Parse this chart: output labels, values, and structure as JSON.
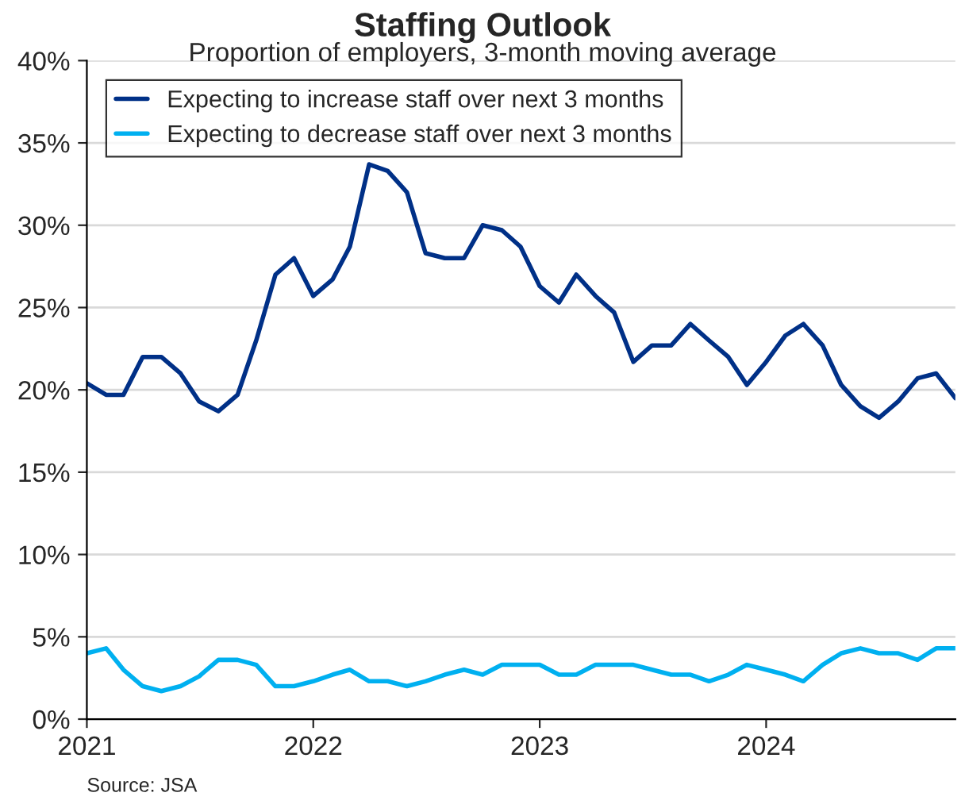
{
  "chart_data": {
    "type": "line",
    "title": "Staffing Outlook",
    "subtitle": "Proportion of employers, 3-month moving average",
    "x": [
      "2021-01",
      "2021-02",
      "2021-03",
      "2021-04",
      "2021-05",
      "2021-06",
      "2021-07",
      "2021-08",
      "2021-09",
      "2021-10",
      "2021-11",
      "2021-12",
      "2022-01",
      "2022-02",
      "2022-03",
      "2022-04",
      "2022-05",
      "2022-06",
      "2022-07",
      "2022-08",
      "2022-09",
      "2022-10",
      "2022-11",
      "2022-12",
      "2023-01",
      "2023-02",
      "2023-03",
      "2023-04",
      "2023-05",
      "2023-06",
      "2023-07",
      "2023-08",
      "2023-09",
      "2023-10",
      "2023-11",
      "2023-12",
      "2024-01",
      "2024-02",
      "2024-03",
      "2024-04",
      "2024-05",
      "2024-06",
      "2024-07",
      "2024-08",
      "2024-09",
      "2024-10",
      "2024-11"
    ],
    "series": [
      {
        "name": "Expecting to increase staff over next 3 months",
        "color": "#003087",
        "values": [
          20.4,
          19.7,
          19.7,
          22.0,
          22.0,
          21.0,
          19.3,
          18.7,
          19.7,
          23.0,
          27.0,
          28.0,
          25.7,
          26.7,
          28.7,
          33.7,
          33.3,
          32.0,
          28.3,
          28.0,
          28.0,
          30.0,
          29.7,
          28.7,
          26.3,
          25.3,
          27.0,
          25.7,
          24.7,
          21.7,
          22.7,
          22.7,
          24.0,
          23.0,
          22.0,
          20.3,
          21.7,
          23.3,
          24.0,
          22.7,
          20.3,
          19.0,
          18.3,
          19.3,
          20.7,
          21.0,
          19.5
        ]
      },
      {
        "name": "Expecting to decrease staff over next 3 months",
        "color": "#00b0f0",
        "values": [
          4.0,
          4.3,
          3.0,
          2.0,
          1.7,
          2.0,
          2.6,
          3.6,
          3.6,
          3.3,
          2.0,
          2.0,
          2.3,
          2.7,
          3.0,
          2.3,
          2.3,
          2.0,
          2.3,
          2.7,
          3.0,
          2.7,
          3.3,
          3.3,
          3.3,
          2.7,
          2.7,
          3.3,
          3.3,
          3.3,
          3.0,
          2.7,
          2.7,
          2.3,
          2.7,
          3.3,
          3.0,
          2.7,
          2.3,
          3.3,
          4.0,
          4.3,
          4.0,
          4.0,
          3.6,
          4.3,
          4.3
        ]
      }
    ],
    "xlim": [
      "2021-01",
      "2024-11"
    ],
    "xticks": [
      {
        "value": "2021-01",
        "label": "2021"
      },
      {
        "value": "2022-01",
        "label": "2022"
      },
      {
        "value": "2023-01",
        "label": "2023"
      },
      {
        "value": "2024-01",
        "label": "2024"
      }
    ],
    "ylim": [
      0,
      40
    ],
    "yticks": [
      {
        "value": 0,
        "label": "0%"
      },
      {
        "value": 5,
        "label": "5%"
      },
      {
        "value": 10,
        "label": "10%"
      },
      {
        "value": 15,
        "label": "15%"
      },
      {
        "value": 20,
        "label": "20%"
      },
      {
        "value": 25,
        "label": "25%"
      },
      {
        "value": 30,
        "label": "30%"
      },
      {
        "value": 35,
        "label": "35%"
      },
      {
        "value": 40,
        "label": "40%"
      }
    ],
    "grid": "y",
    "legend": "top left",
    "marker": "none",
    "line_style": "solid",
    "annotations": [
      "Source: JSA"
    ]
  }
}
